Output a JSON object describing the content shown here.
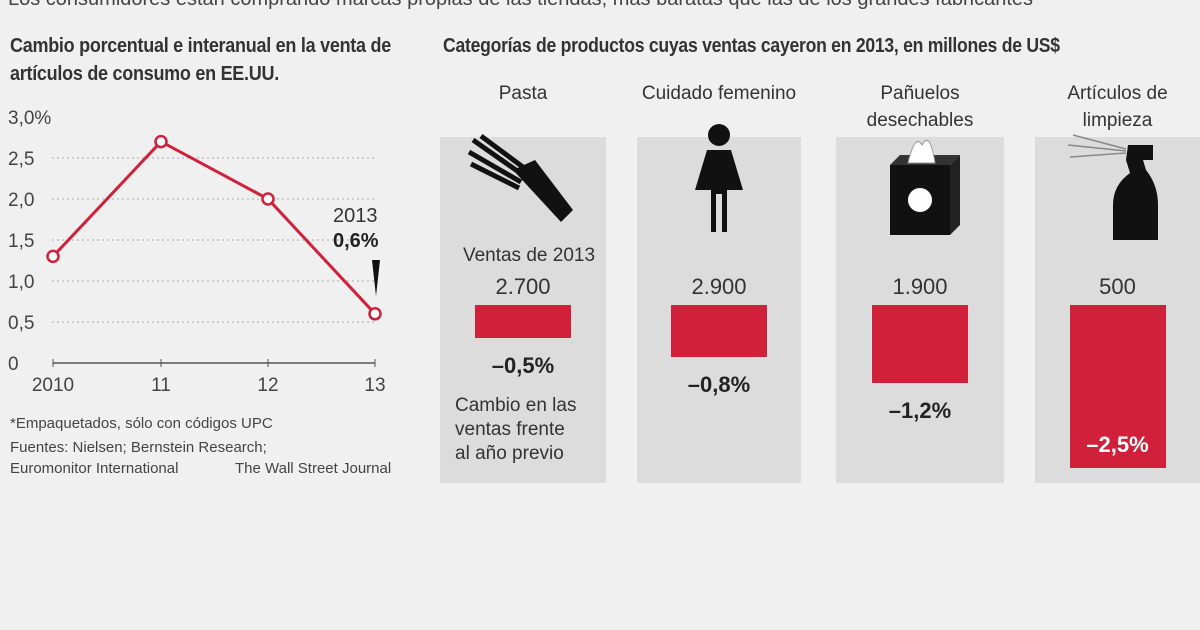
{
  "headline": "Los consumidores están comprando marcas propias de las tiendas, más baratas que las de los grandes fabricantes",
  "colors": {
    "line": "#d0203a",
    "bar": "#d0203a",
    "panel": "#dcdcdc",
    "background": "#f0f0f0"
  },
  "chart_data": [
    {
      "type": "line",
      "title": "Cambio porcentual e interanual en la venta de artículos de consumo en EE.UU.",
      "x": [
        "2010",
        "11",
        "12",
        "13"
      ],
      "values": [
        1.3,
        2.7,
        2.0,
        0.6
      ],
      "yticks": [
        "3,0%",
        "2,5",
        "2,0",
        "1,5",
        "1,0",
        "0,5",
        "0"
      ],
      "ylim": [
        0,
        3.0
      ],
      "annotation": {
        "year": "2013",
        "value": "0,6%"
      },
      "grid": true
    },
    {
      "type": "bar",
      "title": "Categorías de productos cuyas ventas cayeron en 2013, en millones de US$",
      "categories": [
        "Pasta",
        "Cuidado femenino",
        "Pañuelos desechables",
        "Artículos de limpieza"
      ],
      "category_lines": [
        [
          "Pasta"
        ],
        [
          "Cuidado femenino"
        ],
        [
          "Pañuelos",
          "desechables"
        ],
        [
          "Artículos de",
          "limpieza"
        ]
      ],
      "icons": [
        "pasta-icon",
        "woman-icon",
        "tissue-box-icon",
        "spray-bottle-icon"
      ],
      "sales_2013": [
        "2.700",
        "2.900",
        "1.900",
        "500"
      ],
      "values": [
        -0.5,
        -0.8,
        -1.2,
        -2.5
      ],
      "value_labels": [
        "–0,5%",
        "–0,8%",
        "–1,2%",
        "–2,5%"
      ],
      "sales_label": "Ventas de 2013",
      "change_label": [
        "Cambio en las",
        "ventas frente",
        "al año previo"
      ]
    }
  ],
  "notes": {
    "footnote": "*Empaquetados, sólo con códigos UPC",
    "sources1": "Fuentes: Nielsen; Bernstein Research;",
    "sources2": "Euromonitor International",
    "credit": "The Wall Street Journal"
  }
}
